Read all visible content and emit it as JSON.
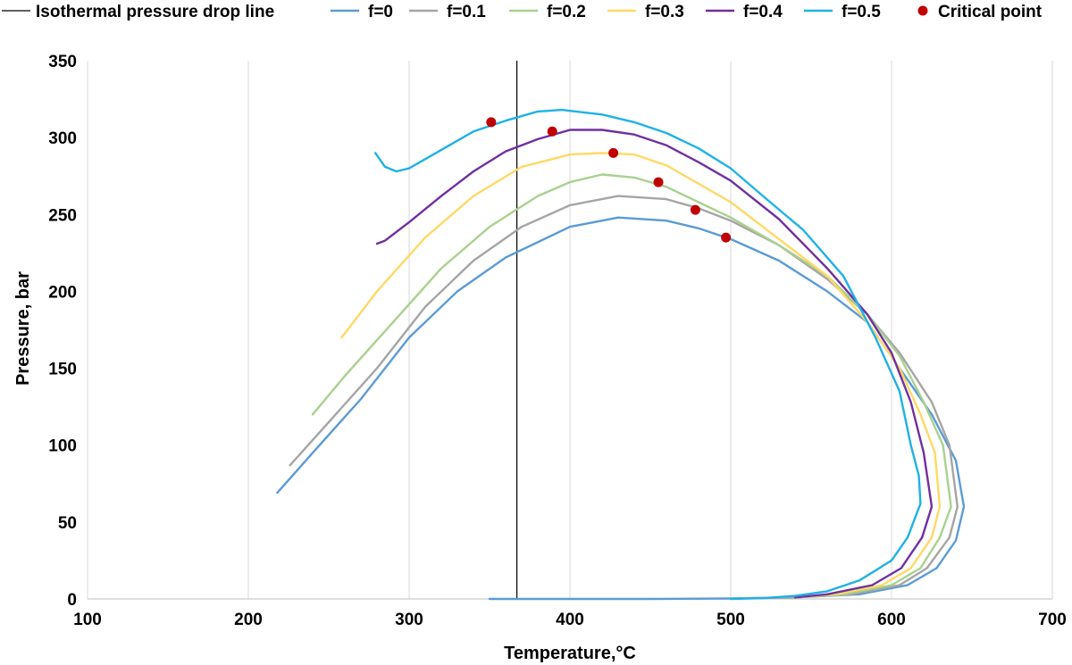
{
  "chart_data": {
    "type": "line",
    "xlabel": "Temperature,°C",
    "ylabel": "Pressure, bar",
    "xlim": [
      100,
      700
    ],
    "ylim": [
      0,
      350
    ],
    "xticks": [
      "100",
      "200",
      "300",
      "400",
      "500",
      "600",
      "700"
    ],
    "yticks": [
      "0",
      "50",
      "100",
      "150",
      "200",
      "250",
      "300",
      "350"
    ],
    "grid": "vertical",
    "legend": "top",
    "isotherm": {
      "name": "Isothermal pressure drop line",
      "x": 367,
      "y": [
        0,
        350
      ],
      "color": "#000000"
    },
    "series": [
      {
        "name": "f=0",
        "color": "#5b9bd5",
        "points": [
          [
            218,
            69
          ],
          [
            240,
            95
          ],
          [
            270,
            130
          ],
          [
            300,
            170
          ],
          [
            330,
            200
          ],
          [
            360,
            222
          ],
          [
            400,
            242
          ],
          [
            430,
            248
          ],
          [
            460,
            246
          ],
          [
            480,
            241
          ],
          [
            500,
            234
          ],
          [
            530,
            220
          ],
          [
            560,
            200
          ],
          [
            585,
            180
          ],
          [
            605,
            150
          ],
          [
            625,
            120
          ],
          [
            640,
            90
          ],
          [
            645,
            60
          ],
          [
            640,
            38
          ],
          [
            628,
            20
          ],
          [
            610,
            9
          ],
          [
            580,
            3
          ],
          [
            540,
            1
          ],
          [
            500,
            0.3
          ],
          [
            450,
            0
          ],
          [
            350,
            0
          ]
        ]
      },
      {
        "name": "f=0.1",
        "color": "#a5a5a5",
        "points": [
          [
            226,
            87
          ],
          [
            250,
            115
          ],
          [
            280,
            150
          ],
          [
            310,
            190
          ],
          [
            340,
            220
          ],
          [
            370,
            242
          ],
          [
            400,
            256
          ],
          [
            430,
            262
          ],
          [
            460,
            260
          ],
          [
            480,
            254
          ],
          [
            500,
            246
          ],
          [
            530,
            230
          ],
          [
            560,
            208
          ],
          [
            585,
            185
          ],
          [
            605,
            160
          ],
          [
            625,
            128
          ],
          [
            636,
            100
          ],
          [
            641,
            60
          ],
          [
            636,
            40
          ],
          [
            622,
            20
          ],
          [
            605,
            9
          ],
          [
            575,
            3
          ],
          [
            540,
            1
          ],
          [
            500,
            0.3
          ]
        ]
      },
      {
        "name": "f=0.2",
        "color": "#a9d18e",
        "points": [
          [
            240,
            120
          ],
          [
            260,
            145
          ],
          [
            290,
            180
          ],
          [
            320,
            215
          ],
          [
            350,
            242
          ],
          [
            380,
            262
          ],
          [
            400,
            271
          ],
          [
            420,
            276
          ],
          [
            440,
            274
          ],
          [
            460,
            268
          ],
          [
            480,
            258
          ],
          [
            500,
            248
          ],
          [
            530,
            230
          ],
          [
            560,
            210
          ],
          [
            585,
            185
          ],
          [
            605,
            158
          ],
          [
            620,
            128
          ],
          [
            632,
            100
          ],
          [
            637,
            60
          ],
          [
            630,
            40
          ],
          [
            618,
            20
          ],
          [
            600,
            9
          ],
          [
            570,
            3
          ],
          [
            540,
            1
          ]
        ]
      },
      {
        "name": "f=0.3",
        "color": "#ffd966",
        "points": [
          [
            258,
            170
          ],
          [
            280,
            200
          ],
          [
            310,
            235
          ],
          [
            340,
            262
          ],
          [
            370,
            281
          ],
          [
            400,
            289
          ],
          [
            420,
            290
          ],
          [
            440,
            289
          ],
          [
            460,
            282
          ],
          [
            480,
            270
          ],
          [
            500,
            258
          ],
          [
            530,
            234
          ],
          [
            560,
            210
          ],
          [
            585,
            180
          ],
          [
            605,
            150
          ],
          [
            618,
            120
          ],
          [
            627,
            95
          ],
          [
            630,
            60
          ],
          [
            625,
            40
          ],
          [
            612,
            20
          ],
          [
            594,
            9
          ],
          [
            565,
            3
          ],
          [
            540,
            1
          ]
        ]
      },
      {
        "name": "f=0.4",
        "color": "#7030a0",
        "points": [
          [
            280,
            231
          ],
          [
            285,
            233
          ],
          [
            300,
            245
          ],
          [
            320,
            262
          ],
          [
            340,
            278
          ],
          [
            360,
            291
          ],
          [
            380,
            299
          ],
          [
            400,
            305
          ],
          [
            420,
            305
          ],
          [
            440,
            302
          ],
          [
            460,
            295
          ],
          [
            480,
            284
          ],
          [
            500,
            272
          ],
          [
            530,
            247
          ],
          [
            560,
            215
          ],
          [
            585,
            185
          ],
          [
            600,
            160
          ],
          [
            612,
            128
          ],
          [
            620,
            95
          ],
          [
            625,
            60
          ],
          [
            619,
            40
          ],
          [
            606,
            20
          ],
          [
            588,
            9
          ],
          [
            560,
            3
          ],
          [
            540,
            1
          ]
        ]
      },
      {
        "name": "f=0.5",
        "color": "#1fb1e6",
        "points": [
          [
            279,
            290
          ],
          [
            285,
            281
          ],
          [
            292,
            278
          ],
          [
            300,
            280
          ],
          [
            320,
            292
          ],
          [
            340,
            304
          ],
          [
            360,
            311
          ],
          [
            380,
            317
          ],
          [
            395,
            318
          ],
          [
            420,
            315
          ],
          [
            440,
            310
          ],
          [
            460,
            303
          ],
          [
            480,
            293
          ],
          [
            500,
            280
          ],
          [
            520,
            262
          ],
          [
            545,
            240
          ],
          [
            570,
            210
          ],
          [
            590,
            170
          ],
          [
            605,
            135
          ],
          [
            612,
            100
          ],
          [
            617,
            80
          ],
          [
            618,
            62
          ],
          [
            610,
            40
          ],
          [
            600,
            25
          ],
          [
            580,
            12
          ],
          [
            560,
            5
          ],
          [
            540,
            2
          ],
          [
            520,
            0.5
          ],
          [
            500,
            0
          ]
        ]
      }
    ],
    "critical_points": {
      "name": "Critical point",
      "color": "#c00000",
      "points": [
        [
          351,
          310
        ],
        [
          389,
          304
        ],
        [
          427,
          290
        ],
        [
          455,
          271
        ],
        [
          478,
          253
        ],
        [
          497,
          235
        ]
      ]
    }
  }
}
